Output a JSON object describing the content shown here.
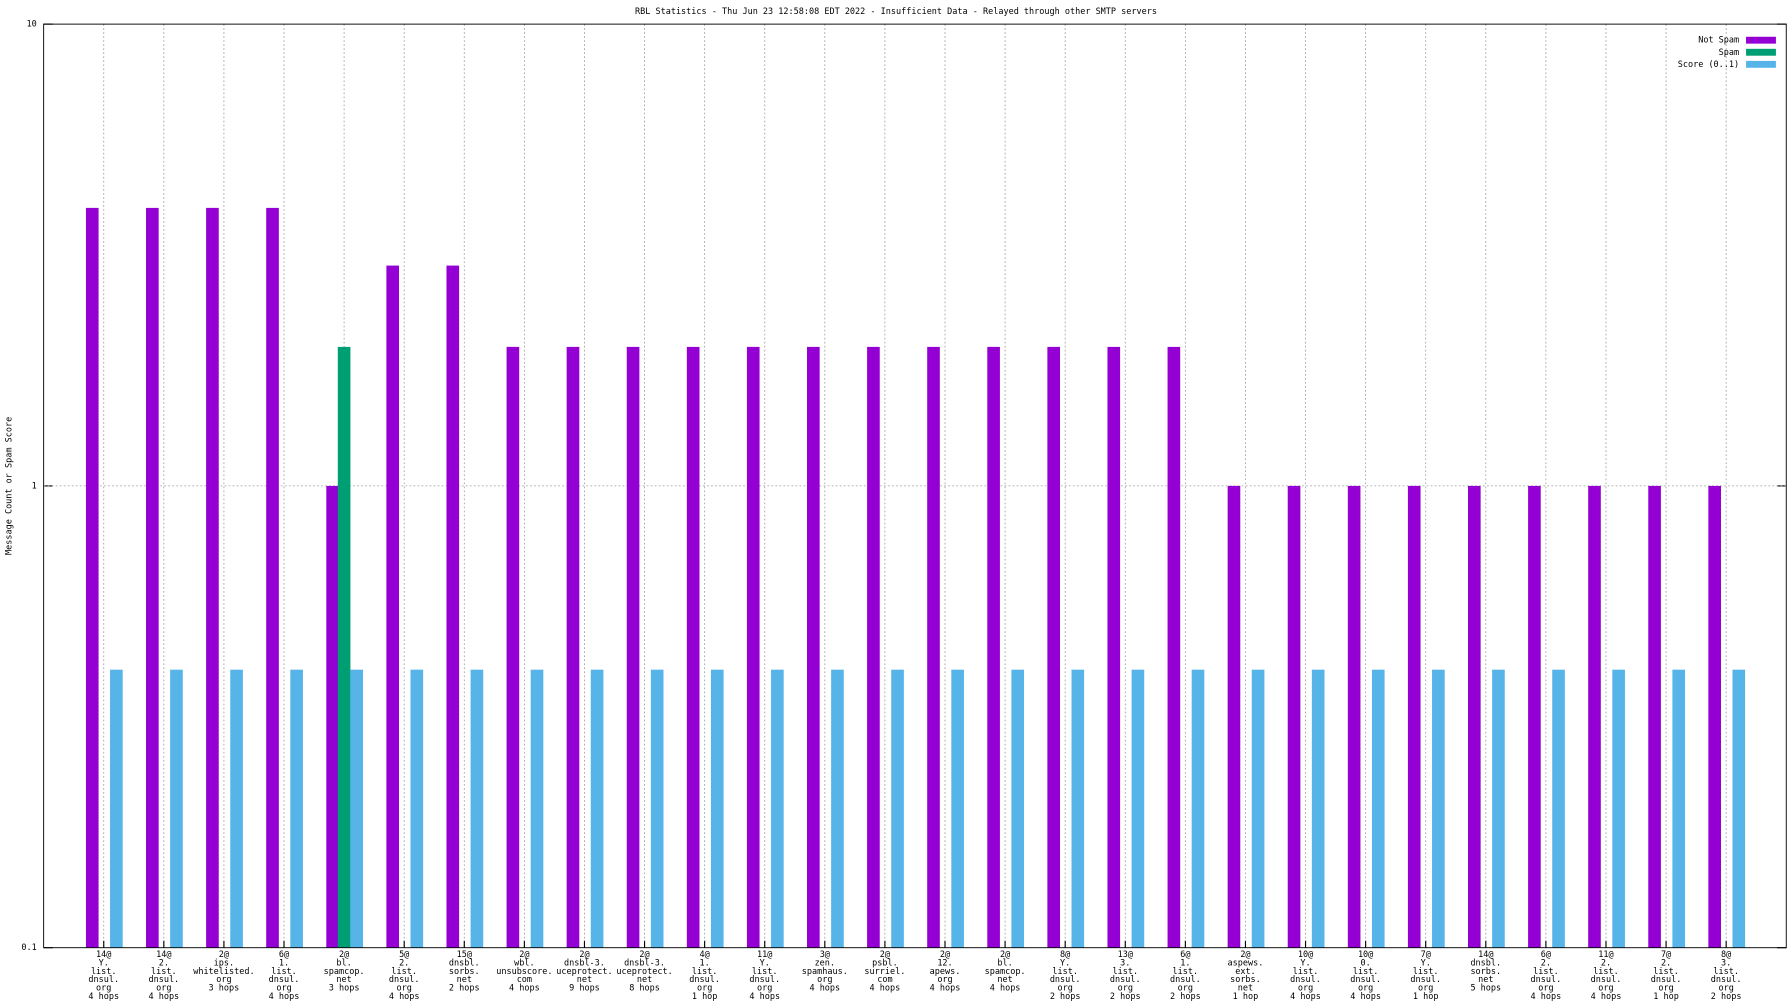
{
  "chart_data": {
    "type": "bar",
    "title": "RBL Statistics - Thu Jun 23 12:58:08 EDT 2022 - Insufficient Data - Relayed through other SMTP servers",
    "y_label": "Message Count or Spam Score",
    "log_scale": true,
    "grid": true,
    "legend_position": "top-right",
    "ylim": [
      0.1,
      10
    ],
    "yticks": [
      0.1,
      1,
      10
    ],
    "categories": [
      [
        "14@",
        "Y.",
        "list.",
        "dnsul.",
        "org",
        "4 hops"
      ],
      [
        "14@",
        "2.",
        "list.",
        "dnsul.",
        "org",
        "4 hops"
      ],
      [
        "2@",
        "ips.",
        "whitelisted.",
        "org",
        "3 hops"
      ],
      [
        "6@",
        "1.",
        "list.",
        "dnsul.",
        "org",
        "4 hops"
      ],
      [
        "2@",
        "bl.",
        "spamcop.",
        "net",
        "3 hops"
      ],
      [
        "5@",
        "2.",
        "list.",
        "dnsul.",
        "org",
        "4 hops"
      ],
      [
        "15@",
        "dnsbl.",
        "sorbs.",
        "net",
        "2 hops"
      ],
      [
        "2@",
        "wbl.",
        "unsubscore.",
        "com",
        "4 hops"
      ],
      [
        "2@",
        "dnsbl-3.",
        "uceprotect.",
        "net",
        "9 hops"
      ],
      [
        "2@",
        "dnsbl-3.",
        "uceprotect.",
        "net",
        "8 hops"
      ],
      [
        "4@",
        "1.",
        "list.",
        "dnsul.",
        "org",
        "1 hop"
      ],
      [
        "11@",
        "Y.",
        "list.",
        "dnsul.",
        "org",
        "4 hops"
      ],
      [
        "3@",
        "zen.",
        "spamhaus.",
        "org",
        "4 hops"
      ],
      [
        "2@",
        "psbl.",
        "surriel.",
        "com",
        "4 hops"
      ],
      [
        "2@",
        "12.",
        "apews.",
        "org",
        "4 hops"
      ],
      [
        "2@",
        "bl.",
        "spamcop.",
        "net",
        "4 hops"
      ],
      [
        "8@",
        "Y.",
        "list.",
        "dnsul.",
        "org",
        "2 hops"
      ],
      [
        "13@",
        "3.",
        "list.",
        "dnsul.",
        "org",
        "2 hops"
      ],
      [
        "6@",
        "1.",
        "list.",
        "dnsul.",
        "org",
        "2 hops"
      ],
      [
        "2@",
        "aspews.",
        "ext.",
        "sorbs.",
        "net",
        "1 hop"
      ],
      [
        "10@",
        "Y.",
        "list.",
        "dnsul.",
        "org",
        "4 hops"
      ],
      [
        "10@",
        "0.",
        "list.",
        "dnsul.",
        "org",
        "4 hops"
      ],
      [
        "7@",
        "Y.",
        "list.",
        "dnsul.",
        "org",
        "1 hop"
      ],
      [
        "14@",
        "dnsbl.",
        "sorbs.",
        "net",
        "5 hops"
      ],
      [
        "6@",
        "2.",
        "list.",
        "dnsul.",
        "org",
        "4 hops"
      ],
      [
        "11@",
        "2.",
        "list.",
        "dnsul.",
        "org",
        "4 hops"
      ],
      [
        "7@",
        "2.",
        "list.",
        "dnsul.",
        "org",
        "1 hop"
      ],
      [
        "8@",
        "3.",
        "list.",
        "dnsul.",
        "org",
        "2 hops"
      ]
    ],
    "series": [
      {
        "name": "Not Spam",
        "color": "#9400d3",
        "values": [
          4,
          4,
          4,
          4,
          1,
          3,
          3,
          2,
          2,
          2,
          2,
          2,
          2,
          2,
          2,
          2,
          2,
          2,
          2,
          1,
          1,
          1,
          1,
          1,
          1,
          1,
          1,
          1
        ]
      },
      {
        "name": "Spam",
        "color": "#009e73",
        "values": [
          null,
          null,
          null,
          null,
          2,
          null,
          null,
          null,
          null,
          null,
          null,
          null,
          null,
          null,
          null,
          null,
          null,
          null,
          null,
          null,
          null,
          null,
          null,
          null,
          null,
          null,
          null,
          null
        ]
      },
      {
        "name": "Score (0..1)",
        "color": "#56b4e9",
        "values": [
          0.4,
          0.4,
          0.4,
          0.4,
          0.4,
          0.4,
          0.4,
          0.4,
          0.4,
          0.4,
          0.4,
          0.4,
          0.4,
          0.4,
          0.4,
          0.4,
          0.4,
          0.4,
          0.4,
          0.4,
          0.4,
          0.4,
          0.4,
          0.4,
          0.4,
          0.4,
          0.4,
          0.4
        ]
      }
    ]
  }
}
